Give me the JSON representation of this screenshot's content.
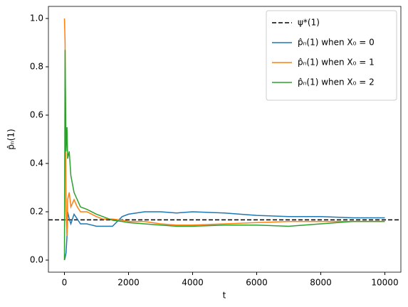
{
  "chart_data": {
    "type": "line",
    "xlabel": "t",
    "ylabel": "p̂ₙ(1)",
    "x": [
      0,
      20,
      50,
      80,
      100,
      150,
      200,
      300,
      400,
      500,
      700,
      1000,
      1200,
      1500,
      1800,
      2000,
      2500,
      3000,
      3500,
      4000,
      5000,
      6000,
      7000,
      8000,
      9000,
      10000
    ],
    "series": [
      {
        "name": "p̂ₙ(1) when X₀ = 0",
        "color": "#1f77b4",
        "values": [
          0,
          0.01,
          0.03,
          0.1,
          0.2,
          0.17,
          0.15,
          0.19,
          0.17,
          0.15,
          0.15,
          0.14,
          0.14,
          0.14,
          0.18,
          0.19,
          0.2,
          0.2,
          0.195,
          0.2,
          0.195,
          0.185,
          0.18,
          0.18,
          0.175,
          0.175
        ]
      },
      {
        "name": "p̂ₙ(1) when X₀ = 1",
        "color": "#ff7f0e",
        "values": [
          1.0,
          0.9,
          0.2,
          0.1,
          0.25,
          0.28,
          0.22,
          0.25,
          0.22,
          0.2,
          0.2,
          0.18,
          0.17,
          0.17,
          0.165,
          0.16,
          0.16,
          0.15,
          0.145,
          0.145,
          0.15,
          0.155,
          0.16,
          0.16,
          0.16,
          0.16
        ]
      },
      {
        "name": "p̂ₙ(1) when X₀ = 2",
        "color": "#2ca02c",
        "values": [
          0,
          0.87,
          0.45,
          0.55,
          0.42,
          0.45,
          0.35,
          0.28,
          0.25,
          0.22,
          0.21,
          0.19,
          0.18,
          0.165,
          0.16,
          0.155,
          0.15,
          0.145,
          0.14,
          0.14,
          0.145,
          0.145,
          0.14,
          0.15,
          0.16,
          0.16
        ]
      }
    ],
    "reference_line": {
      "name": "ψ*(1)",
      "value": 0.1667,
      "color": "#000000"
    },
    "xlim": [
      -500,
      10500
    ],
    "ylim": [
      -0.05,
      1.05
    ],
    "xticks": [
      0,
      2000,
      4000,
      6000,
      8000,
      10000
    ],
    "yticks": [
      {
        "value": 0,
        "label": "0.0"
      },
      {
        "value": 0.2,
        "label": "0.2"
      },
      {
        "value": 0.4,
        "label": "0.4"
      },
      {
        "value": 0.6,
        "label": "0.6"
      },
      {
        "value": 0.8,
        "label": "0.8"
      },
      {
        "value": 1,
        "label": "1.0"
      }
    ],
    "legend": "upper right"
  }
}
